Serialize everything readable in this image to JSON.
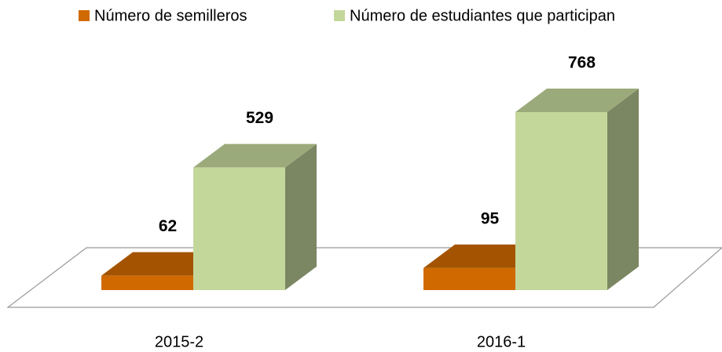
{
  "chart_data": {
    "type": "bar3d",
    "categories": [
      "2015-2",
      "2016-1"
    ],
    "series": [
      {
        "name": "Número de semilleros",
        "color": "#d06a00",
        "values": [
          62,
          95
        ]
      },
      {
        "name": "Número de estudiantes que participan",
        "color": "#c4d79b",
        "values": [
          529,
          768
        ]
      }
    ],
    "legend": "top"
  }
}
